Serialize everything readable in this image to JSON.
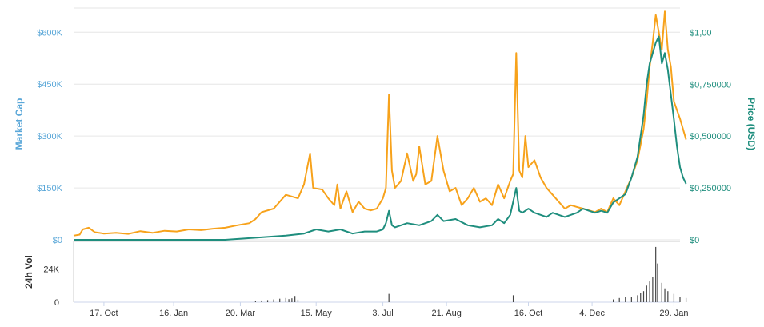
{
  "chart_data": {
    "type": "line",
    "x_axis": {
      "ticks": [
        "17. Oct",
        "16. Jan",
        "20. Mar",
        "15. May",
        "3. Jul",
        "21. Aug",
        "16. Oct",
        "4. Dec",
        "29. Jan"
      ],
      "tick_positions": [
        0.05,
        0.165,
        0.275,
        0.4,
        0.51,
        0.615,
        0.75,
        0.855,
        0.99
      ]
    },
    "y_left": {
      "title": "Market Cap",
      "ticks": [
        "$0",
        "$150K",
        "$300K",
        "$450K",
        "$600K"
      ],
      "tick_values": [
        0,
        150000,
        300000,
        450000,
        600000
      ],
      "range": [
        0,
        670000
      ],
      "color": "#5aa7d8"
    },
    "y_right": {
      "title": "Price (USD)",
      "ticks": [
        "$0",
        "$0,250000",
        "$0,500000",
        "$0,750000",
        "$1,00"
      ],
      "tick_values": [
        0,
        0.25,
        0.5,
        0.75,
        1.0
      ],
      "range": [
        0,
        1.117
      ],
      "color": "#1f8e7e"
    },
    "volume_axis": {
      "title": "24h Vol",
      "ticks": [
        "0",
        "24K"
      ],
      "tick_values": [
        0,
        24000
      ],
      "range": [
        0,
        44000
      ]
    },
    "series": [
      {
        "name": "Market Cap",
        "color": "#f7a21b",
        "axis": "left",
        "points": [
          [
            0.0,
            12000
          ],
          [
            0.01,
            15000
          ],
          [
            0.015,
            30000
          ],
          [
            0.025,
            35000
          ],
          [
            0.035,
            22000
          ],
          [
            0.05,
            18000
          ],
          [
            0.07,
            20000
          ],
          [
            0.09,
            17000
          ],
          [
            0.11,
            25000
          ],
          [
            0.13,
            20000
          ],
          [
            0.15,
            26000
          ],
          [
            0.17,
            24000
          ],
          [
            0.19,
            30000
          ],
          [
            0.21,
            28000
          ],
          [
            0.23,
            32000
          ],
          [
            0.25,
            35000
          ],
          [
            0.27,
            42000
          ],
          [
            0.29,
            48000
          ],
          [
            0.3,
            60000
          ],
          [
            0.31,
            80000
          ],
          [
            0.33,
            90000
          ],
          [
            0.35,
            130000
          ],
          [
            0.37,
            120000
          ],
          [
            0.38,
            160000
          ],
          [
            0.39,
            250000
          ],
          [
            0.395,
            150000
          ],
          [
            0.41,
            145000
          ],
          [
            0.42,
            120000
          ],
          [
            0.43,
            100000
          ],
          [
            0.435,
            160000
          ],
          [
            0.44,
            90000
          ],
          [
            0.45,
            140000
          ],
          [
            0.46,
            80000
          ],
          [
            0.47,
            110000
          ],
          [
            0.48,
            90000
          ],
          [
            0.49,
            85000
          ],
          [
            0.5,
            90000
          ],
          [
            0.51,
            120000
          ],
          [
            0.515,
            150000
          ],
          [
            0.52,
            420000
          ],
          [
            0.525,
            200000
          ],
          [
            0.53,
            150000
          ],
          [
            0.54,
            170000
          ],
          [
            0.55,
            250000
          ],
          [
            0.56,
            170000
          ],
          [
            0.565,
            190000
          ],
          [
            0.57,
            270000
          ],
          [
            0.58,
            160000
          ],
          [
            0.59,
            170000
          ],
          [
            0.6,
            300000
          ],
          [
            0.61,
            200000
          ],
          [
            0.62,
            140000
          ],
          [
            0.63,
            150000
          ],
          [
            0.64,
            100000
          ],
          [
            0.65,
            120000
          ],
          [
            0.66,
            150000
          ],
          [
            0.67,
            110000
          ],
          [
            0.68,
            120000
          ],
          [
            0.69,
            100000
          ],
          [
            0.7,
            160000
          ],
          [
            0.71,
            120000
          ],
          [
            0.72,
            170000
          ],
          [
            0.725,
            190000
          ],
          [
            0.73,
            540000
          ],
          [
            0.735,
            200000
          ],
          [
            0.74,
            180000
          ],
          [
            0.745,
            300000
          ],
          [
            0.75,
            210000
          ],
          [
            0.76,
            230000
          ],
          [
            0.77,
            180000
          ],
          [
            0.78,
            150000
          ],
          [
            0.79,
            130000
          ],
          [
            0.8,
            110000
          ],
          [
            0.81,
            90000
          ],
          [
            0.82,
            100000
          ],
          [
            0.83,
            95000
          ],
          [
            0.84,
            90000
          ],
          [
            0.85,
            85000
          ],
          [
            0.86,
            80000
          ],
          [
            0.87,
            90000
          ],
          [
            0.88,
            80000
          ],
          [
            0.89,
            120000
          ],
          [
            0.9,
            100000
          ],
          [
            0.91,
            140000
          ],
          [
            0.92,
            180000
          ],
          [
            0.93,
            230000
          ],
          [
            0.94,
            320000
          ],
          [
            0.945,
            400000
          ],
          [
            0.95,
            500000
          ],
          [
            0.955,
            570000
          ],
          [
            0.96,
            650000
          ],
          [
            0.965,
            600000
          ],
          [
            0.97,
            550000
          ],
          [
            0.975,
            660000
          ],
          [
            0.98,
            550000
          ],
          [
            0.985,
            500000
          ],
          [
            0.99,
            400000
          ],
          [
            1.0,
            350000
          ],
          [
            1.01,
            290000
          ]
        ]
      },
      {
        "name": "Price (USD)",
        "color": "#1f8e7e",
        "axis": "right",
        "points": [
          [
            0.0,
            0.0
          ],
          [
            0.05,
            0.0
          ],
          [
            0.1,
            0.0
          ],
          [
            0.15,
            0.0
          ],
          [
            0.2,
            0.0
          ],
          [
            0.25,
            0.0
          ],
          [
            0.3,
            0.01
          ],
          [
            0.35,
            0.02
          ],
          [
            0.38,
            0.03
          ],
          [
            0.4,
            0.05
          ],
          [
            0.42,
            0.04
          ],
          [
            0.44,
            0.05
          ],
          [
            0.46,
            0.03
          ],
          [
            0.48,
            0.04
          ],
          [
            0.5,
            0.04
          ],
          [
            0.51,
            0.05
          ],
          [
            0.515,
            0.08
          ],
          [
            0.52,
            0.14
          ],
          [
            0.525,
            0.07
          ],
          [
            0.53,
            0.06
          ],
          [
            0.55,
            0.08
          ],
          [
            0.57,
            0.07
          ],
          [
            0.59,
            0.09
          ],
          [
            0.6,
            0.12
          ],
          [
            0.61,
            0.09
          ],
          [
            0.63,
            0.1
          ],
          [
            0.65,
            0.07
          ],
          [
            0.67,
            0.06
          ],
          [
            0.69,
            0.07
          ],
          [
            0.7,
            0.1
          ],
          [
            0.71,
            0.08
          ],
          [
            0.72,
            0.12
          ],
          [
            0.73,
            0.25
          ],
          [
            0.735,
            0.14
          ],
          [
            0.74,
            0.13
          ],
          [
            0.75,
            0.15
          ],
          [
            0.76,
            0.13
          ],
          [
            0.77,
            0.12
          ],
          [
            0.78,
            0.11
          ],
          [
            0.79,
            0.13
          ],
          [
            0.8,
            0.12
          ],
          [
            0.81,
            0.11
          ],
          [
            0.82,
            0.12
          ],
          [
            0.83,
            0.13
          ],
          [
            0.84,
            0.15
          ],
          [
            0.85,
            0.14
          ],
          [
            0.86,
            0.13
          ],
          [
            0.87,
            0.14
          ],
          [
            0.88,
            0.13
          ],
          [
            0.89,
            0.18
          ],
          [
            0.9,
            0.2
          ],
          [
            0.91,
            0.22
          ],
          [
            0.92,
            0.3
          ],
          [
            0.93,
            0.4
          ],
          [
            0.94,
            0.6
          ],
          [
            0.945,
            0.75
          ],
          [
            0.95,
            0.85
          ],
          [
            0.955,
            0.9
          ],
          [
            0.96,
            0.95
          ],
          [
            0.965,
            0.98
          ],
          [
            0.97,
            0.85
          ],
          [
            0.975,
            0.9
          ],
          [
            0.98,
            0.82
          ],
          [
            0.985,
            0.7
          ],
          [
            0.99,
            0.58
          ],
          [
            0.995,
            0.45
          ],
          [
            1.0,
            0.35
          ],
          [
            1.005,
            0.3
          ],
          [
            1.01,
            0.27
          ]
        ]
      }
    ],
    "volume_spikes": [
      [
        0.3,
        800
      ],
      [
        0.31,
        1200
      ],
      [
        0.32,
        1500
      ],
      [
        0.33,
        2000
      ],
      [
        0.34,
        2500
      ],
      [
        0.35,
        3000
      ],
      [
        0.355,
        2200
      ],
      [
        0.36,
        2800
      ],
      [
        0.365,
        4500
      ],
      [
        0.37,
        1800
      ],
      [
        0.52,
        6000
      ],
      [
        0.725,
        5000
      ],
      [
        0.89,
        2000
      ],
      [
        0.9,
        3000
      ],
      [
        0.91,
        3500
      ],
      [
        0.92,
        4000
      ],
      [
        0.93,
        5000
      ],
      [
        0.935,
        6500
      ],
      [
        0.94,
        8000
      ],
      [
        0.945,
        12000
      ],
      [
        0.95,
        15000
      ],
      [
        0.955,
        18000
      ],
      [
        0.96,
        40000
      ],
      [
        0.963,
        28000
      ],
      [
        0.97,
        14000
      ],
      [
        0.975,
        10000
      ],
      [
        0.98,
        8000
      ],
      [
        0.99,
        6000
      ],
      [
        1.0,
        4000
      ],
      [
        1.01,
        3000
      ]
    ]
  }
}
